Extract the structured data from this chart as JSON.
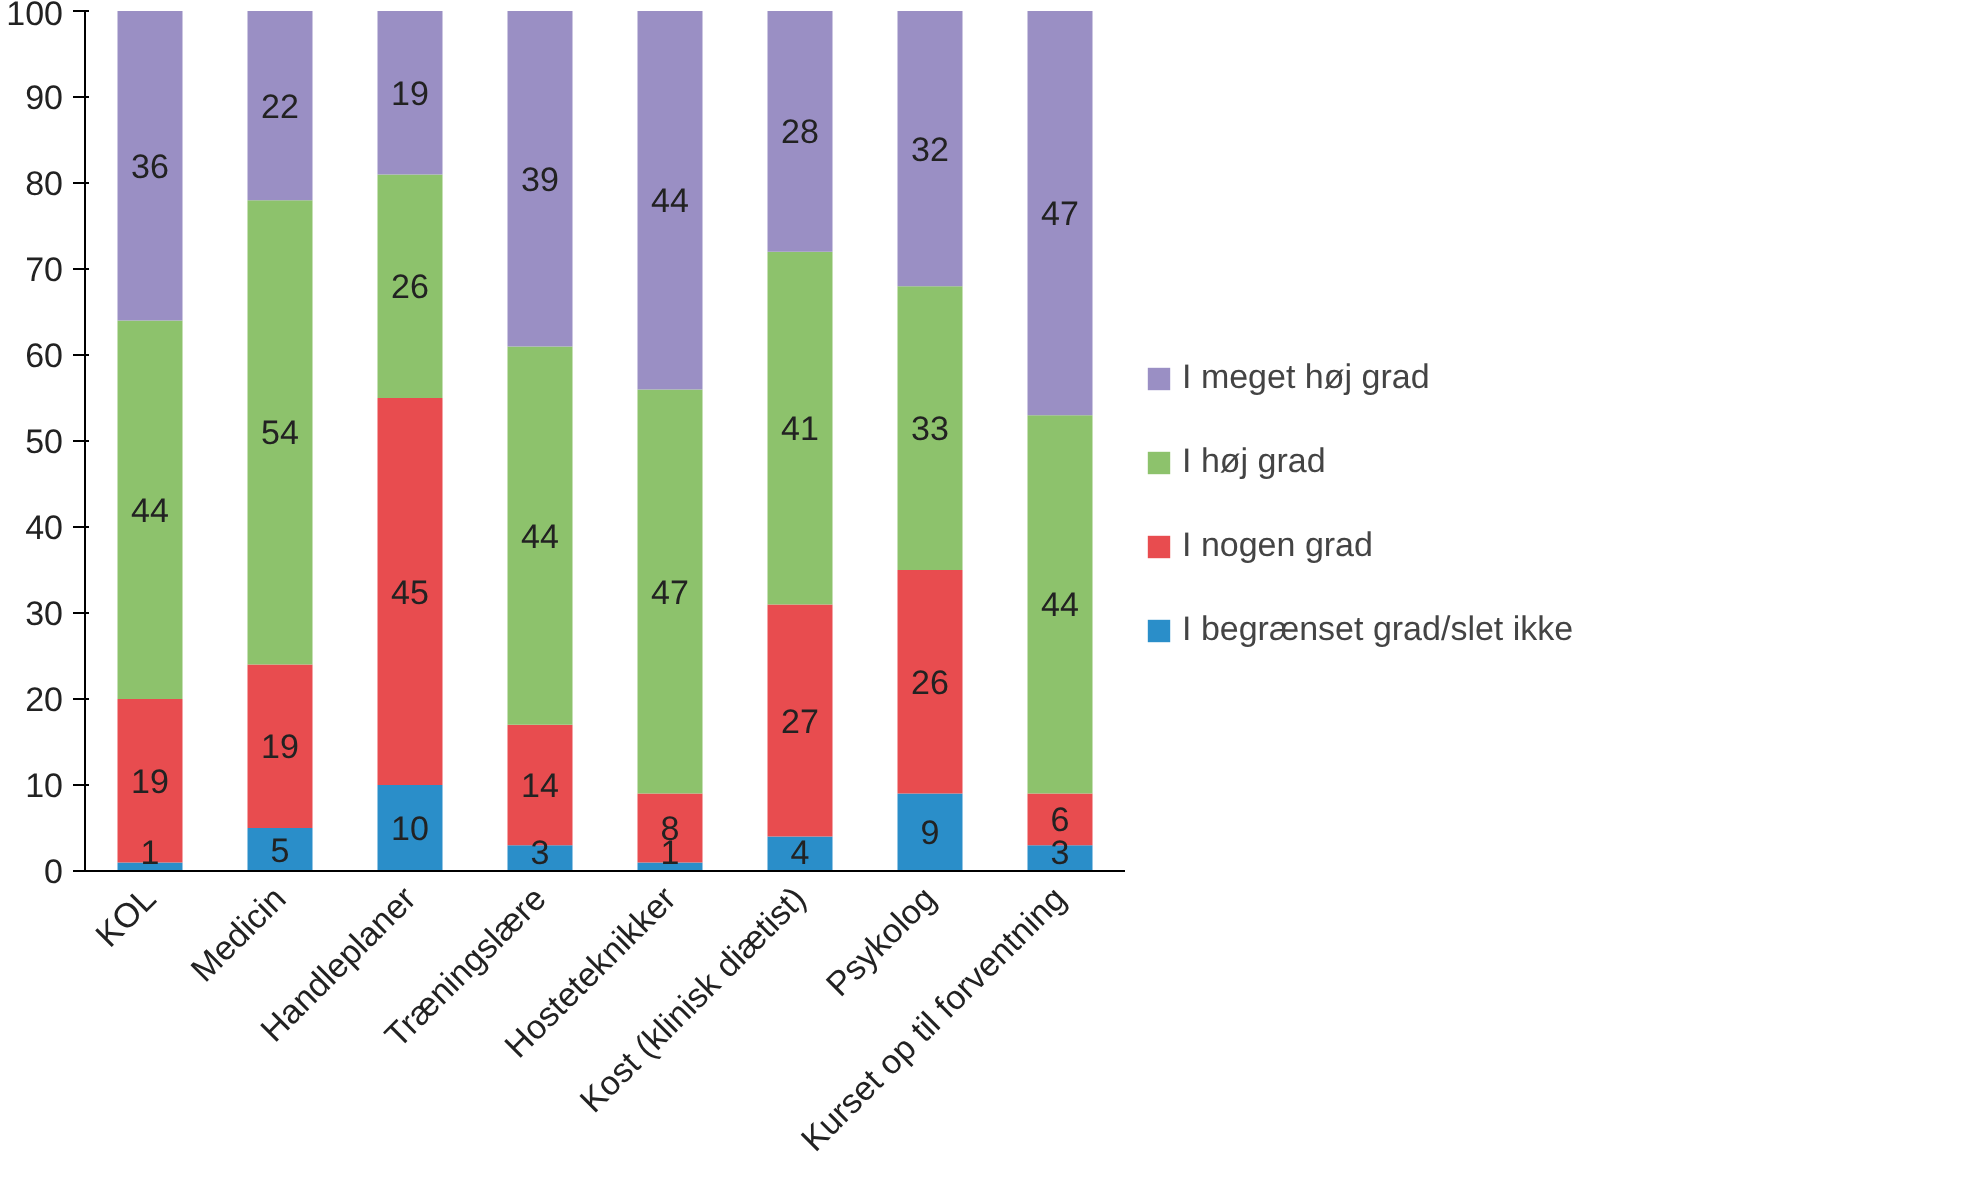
{
  "chart_data": {
    "type": "bar",
    "stacked": true,
    "data_labels": true,
    "grid": false,
    "legend": "right",
    "categories": [
      "KOL",
      "Medicin",
      "Handleplaner",
      "Træningslære",
      "Hosteteknikker",
      "Kost (klinisk diætist)",
      "Psykolog",
      "Kurset op til forventning"
    ],
    "ylim": [
      0,
      100
    ],
    "yticks": [
      0,
      10,
      20,
      30,
      40,
      50,
      60,
      70,
      80,
      90,
      100
    ],
    "series": [
      {
        "name": "I begrænset grad/slet ikke",
        "color": "#2a8ec9",
        "values": [
          1,
          5,
          10,
          3,
          1,
          4,
          9,
          3
        ]
      },
      {
        "name": "I nogen grad",
        "color": "#e84c4f",
        "values": [
          19,
          19,
          45,
          14,
          8,
          27,
          26,
          6
        ]
      },
      {
        "name": "I høj grad",
        "color": "#8dc26c",
        "values": [
          44,
          54,
          26,
          44,
          47,
          41,
          33,
          44
        ]
      },
      {
        "name": "I meget høj grad",
        "color": "#9a8fc4",
        "values": [
          36,
          22,
          19,
          39,
          44,
          28,
          32,
          47
        ]
      }
    ]
  }
}
